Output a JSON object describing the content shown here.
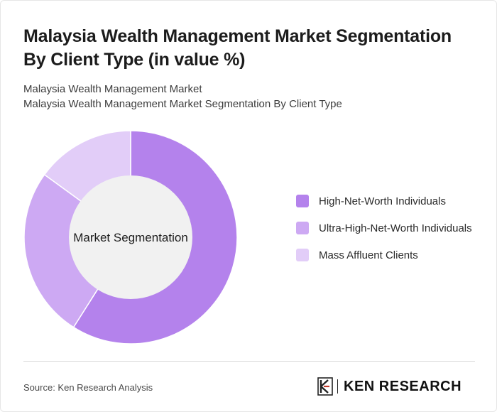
{
  "header": {
    "title": "Malaysia Wealth Management Market Segmentation By Client Type (in value %)",
    "subtitle_line1": "Malaysia Wealth Management Market",
    "subtitle_line2": "Malaysia Wealth Management Market Segmentation By Client Type"
  },
  "chart_data": {
    "type": "pie",
    "variant": "donut",
    "center_label": "Market Segmentation",
    "categories": [
      "High-Net-Worth Individuals",
      "Ultra-High-Net-Worth Individuals",
      "Mass Affluent Clients"
    ],
    "values": [
      59,
      26,
      15
    ],
    "colors": [
      "#b482ec",
      "#cda9f3",
      "#e2cdf8"
    ],
    "legend_position": "right"
  },
  "footer": {
    "source": "Source: Ken Research Analysis",
    "brand": "KEN RESEARCH"
  }
}
